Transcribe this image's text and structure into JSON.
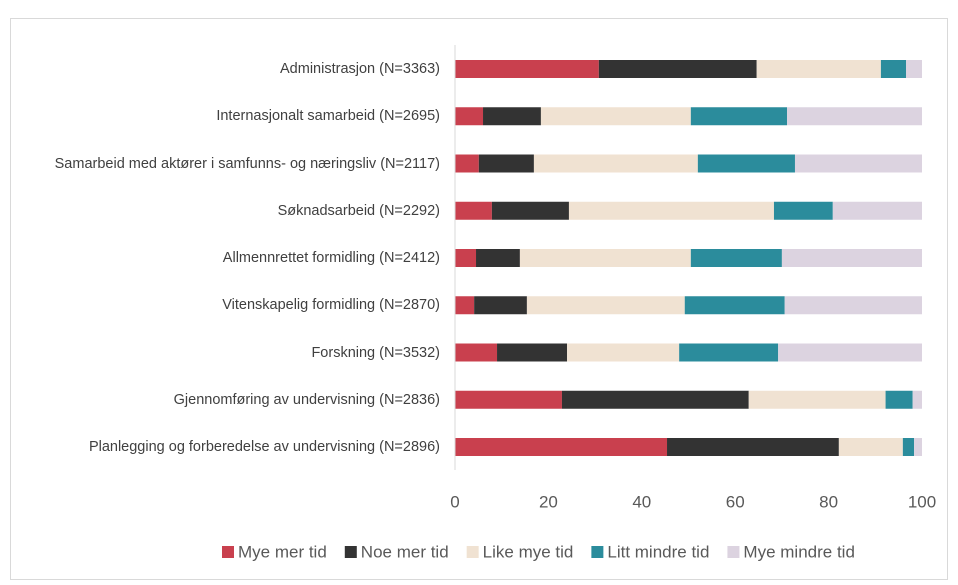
{
  "chart_data": {
    "type": "stacked-barh",
    "categories": [
      "Administrasjon (N=3363)",
      "Internasjonalt samarbeid (N=2695)",
      "Samarbeid med aktører i samfunns- og næringsliv (N=2117)",
      "Søknadsarbeid (N=2292)",
      "Allmennrettet formidling (N=2412)",
      "Vitenskapelig formidling (N=2870)",
      "Forskning (N=3532)",
      "Gjennomføring av undervisning (N=2836)",
      "Planlegging og forberedelse av undervisning (N=2896)"
    ],
    "series": [
      {
        "name": "Mye mer tid",
        "color": "#c9404e",
        "values": [
          30.8,
          6.0,
          5.1,
          7.9,
          4.5,
          4.1,
          9.0,
          22.9,
          45.4
        ]
      },
      {
        "name": "Noe mer tid",
        "color": "#333333",
        "values": [
          33.8,
          12.4,
          11.8,
          16.5,
          9.4,
          11.3,
          15.0,
          40.0,
          36.8
        ]
      },
      {
        "name": "Like mye tid",
        "color": "#f0e2d2",
        "values": [
          26.6,
          32.1,
          35.1,
          43.9,
          36.6,
          33.8,
          24.0,
          29.3,
          13.7
        ]
      },
      {
        "name": "Litt mindre tid",
        "color": "#2b8c9c",
        "values": [
          5.4,
          20.6,
          20.8,
          12.6,
          19.5,
          21.4,
          21.2,
          5.8,
          2.4
        ]
      },
      {
        "name": "Mye mindre tid",
        "color": "#dcd3e0",
        "values": [
          3.4,
          28.9,
          27.2,
          19.1,
          30.0,
          29.4,
          30.8,
          2.0,
          1.7
        ]
      }
    ],
    "xlim": [
      0,
      100
    ],
    "xticks": [
      0,
      20,
      40,
      60,
      80,
      100
    ],
    "legend": "bottom"
  }
}
